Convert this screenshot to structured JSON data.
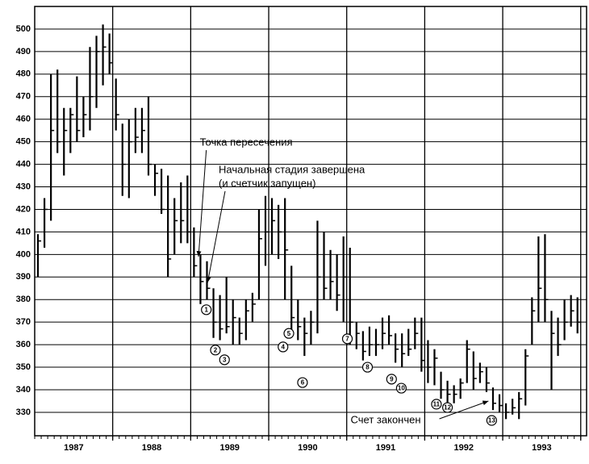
{
  "chart_data": {
    "type": "hlc",
    "xlim": [
      0,
      84.9
    ],
    "ylim": [
      319.6,
      510
    ],
    "yticks": [
      330,
      340,
      350,
      360,
      370,
      380,
      390,
      400,
      410,
      420,
      430,
      440,
      450,
      460,
      470,
      480,
      490,
      500
    ],
    "xgrid": [
      12,
      24,
      36,
      48,
      60,
      72,
      84
    ],
    "xticks": [
      {
        "value": 6,
        "label": "1987"
      },
      {
        "value": 18,
        "label": "1988"
      },
      {
        "value": 30,
        "label": "1989"
      },
      {
        "value": 42,
        "label": "1990"
      },
      {
        "value": 54,
        "label": "1991"
      },
      {
        "value": 66,
        "label": "1992"
      },
      {
        "value": 78,
        "label": "1993"
      }
    ],
    "grid": true,
    "color": "#000000",
    "x": [
      0.5,
      1.5,
      2.5,
      3.5,
      4.5,
      5.5,
      6.5,
      7.5,
      8.5,
      9.5,
      10.5,
      11.5,
      12.5,
      13.5,
      14.5,
      15.5,
      16.5,
      17.5,
      18.5,
      19.5,
      20.5,
      21.5,
      22.5,
      23.5,
      24.5,
      25.5,
      26.5,
      27.5,
      28.5,
      29.5,
      30.5,
      31.5,
      32.5,
      33.5,
      34.5,
      35.5,
      36.5,
      37.5,
      38.5,
      39.5,
      40.5,
      41.5,
      42.5,
      43.5,
      44.5,
      45.5,
      46.5,
      47.5,
      48.5,
      49.5,
      50.5,
      51.5,
      52.5,
      53.5,
      54.5,
      55.5,
      56.5,
      57.5,
      58.5,
      59.5,
      60.5,
      61.5,
      62.5,
      63.5,
      64.5,
      65.5,
      66.5,
      67.5,
      68.5,
      69.5,
      70.5,
      71.5,
      72.5,
      73.5,
      74.5,
      75.5,
      76.5,
      77.5,
      78.5,
      79.5,
      80.5,
      81.5,
      82.5,
      83.5
    ],
    "high": [
      409,
      425,
      480,
      482,
      465,
      465,
      479,
      470,
      492,
      497,
      502,
      498,
      478,
      458,
      460,
      465,
      465,
      470,
      440,
      438,
      435,
      425,
      432,
      435,
      412,
      400,
      397,
      385,
      382,
      390,
      380,
      372,
      380,
      383,
      420,
      426,
      425,
      422,
      425,
      395,
      380,
      372,
      375,
      415,
      410,
      402,
      400,
      408,
      403,
      370,
      366,
      368,
      367,
      372,
      373,
      365,
      365,
      367,
      372,
      372,
      362,
      358,
      348,
      344,
      342,
      345,
      362,
      357,
      352,
      350,
      341,
      338,
      334,
      336,
      339,
      358,
      381,
      408,
      409,
      375,
      372,
      380,
      382,
      381
    ],
    "low": [
      390,
      403,
      415,
      445,
      435,
      445,
      450,
      452,
      455,
      465,
      475,
      480,
      455,
      426,
      425,
      445,
      445,
      435,
      426,
      418,
      390,
      400,
      405,
      405,
      390,
      378,
      380,
      363,
      362,
      365,
      360,
      360,
      362,
      370,
      380,
      395,
      400,
      398,
      380,
      365,
      362,
      355,
      360,
      365,
      380,
      380,
      375,
      370,
      360,
      358,
      353,
      355,
      355,
      358,
      360,
      352,
      350,
      355,
      358,
      348,
      343,
      342,
      336,
      334,
      334,
      336,
      343,
      340,
      343,
      339,
      331,
      330,
      327,
      329,
      327,
      333,
      360,
      370,
      370,
      340,
      355,
      362,
      368,
      365
    ],
    "close": [
      406,
      420,
      455,
      450,
      455,
      462,
      455,
      462,
      470,
      490,
      492,
      485,
      462,
      440,
      450,
      452,
      455,
      440,
      436,
      420,
      398,
      415,
      415,
      410,
      395,
      388,
      385,
      370,
      367,
      368,
      372,
      365,
      375,
      378,
      407,
      410,
      415,
      410,
      402,
      372,
      368,
      365,
      370,
      390,
      385,
      388,
      382,
      390,
      370,
      365,
      357,
      360,
      360,
      365,
      364,
      358,
      356,
      358,
      365,
      353,
      350,
      354,
      340,
      338,
      338,
      343,
      358,
      345,
      348,
      343,
      334,
      333,
      330,
      332,
      336,
      355,
      375,
      385,
      380,
      365,
      360,
      370,
      375,
      370
    ],
    "markers": [
      {
        "label": "1",
        "x": 26.4,
        "y": 375.5
      },
      {
        "label": "2",
        "x": 27.8,
        "y": 357.6
      },
      {
        "label": "3",
        "x": 29.2,
        "y": 353.3
      },
      {
        "label": "4",
        "x": 38.2,
        "y": 359
      },
      {
        "label": "5",
        "x": 39.1,
        "y": 365
      },
      {
        "label": "6",
        "x": 41.2,
        "y": 343.2
      },
      {
        "label": "7",
        "x": 48.1,
        "y": 362.6
      },
      {
        "label": "8",
        "x": 51.2,
        "y": 350
      },
      {
        "label": "9",
        "x": 54.9,
        "y": 344.7
      },
      {
        "label": "10",
        "x": 56.4,
        "y": 340.7
      },
      {
        "label": "11",
        "x": 61.8,
        "y": 333.6
      },
      {
        "label": "12",
        "x": 63.5,
        "y": 332.1
      },
      {
        "label": "13",
        "x": 70.3,
        "y": 326.4
      }
    ],
    "annotations": [
      {
        "text": "Точка пересечения",
        "x": 25.4,
        "y": 449.5,
        "arrow": [
          25.2,
          399
        ]
      },
      {
        "text": "Начальная стадия завершена",
        "x": 28.3,
        "y": 437.4
      },
      {
        "text": "(и счетчик запущен)",
        "x": 28.3,
        "y": 431.3,
        "arrow": [
          26.6,
          387.6
        ]
      },
      {
        "text": "Счет закончен",
        "x": 48.6,
        "y": 326.4,
        "arrow": [
          69.8,
          335
        ]
      }
    ]
  }
}
